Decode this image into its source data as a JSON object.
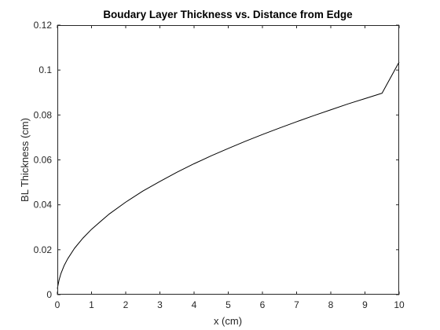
{
  "chart_data": {
    "type": "line",
    "title": "Boudary Layer Thickness vs. Distance from Edge",
    "xlabel": "x (cm)",
    "ylabel": "BL Thickness (cm)",
    "xlim": [
      0,
      10
    ],
    "ylim": [
      0,
      0.12
    ],
    "xticks": [
      0,
      1,
      2,
      3,
      4,
      5,
      6,
      7,
      8,
      9,
      10
    ],
    "xtick_labels": [
      "0",
      "1",
      "2",
      "3",
      "4",
      "5",
      "6",
      "7",
      "8",
      "9",
      "10"
    ],
    "yticks": [
      0,
      0.02,
      0.04,
      0.06,
      0.08,
      0.1,
      0.12
    ],
    "ytick_labels": [
      "0",
      "0.02",
      "0.04",
      "0.06",
      "0.08",
      "0.1",
      "0.12"
    ],
    "grid": false,
    "legend": false,
    "series": [
      {
        "color": "#000000",
        "x": [
          0,
          0.01,
          0.05,
          0.1,
          0.2,
          0.3,
          0.5,
          0.75,
          1,
          1.5,
          2,
          2.5,
          3,
          3.5,
          4,
          4.5,
          5,
          5.5,
          6,
          6.5,
          7,
          7.5,
          8,
          8.5,
          9,
          9.5,
          10
        ],
        "y": [
          0.0026,
          0.0035,
          0.0065,
          0.0092,
          0.013,
          0.0159,
          0.0206,
          0.0252,
          0.0291,
          0.0357,
          0.0412,
          0.0461,
          0.0504,
          0.0545,
          0.0583,
          0.0618,
          0.0651,
          0.0683,
          0.0713,
          0.0742,
          0.077,
          0.0797,
          0.0823,
          0.0849,
          0.0873,
          0.0897,
          0.1036
        ]
      }
    ]
  }
}
